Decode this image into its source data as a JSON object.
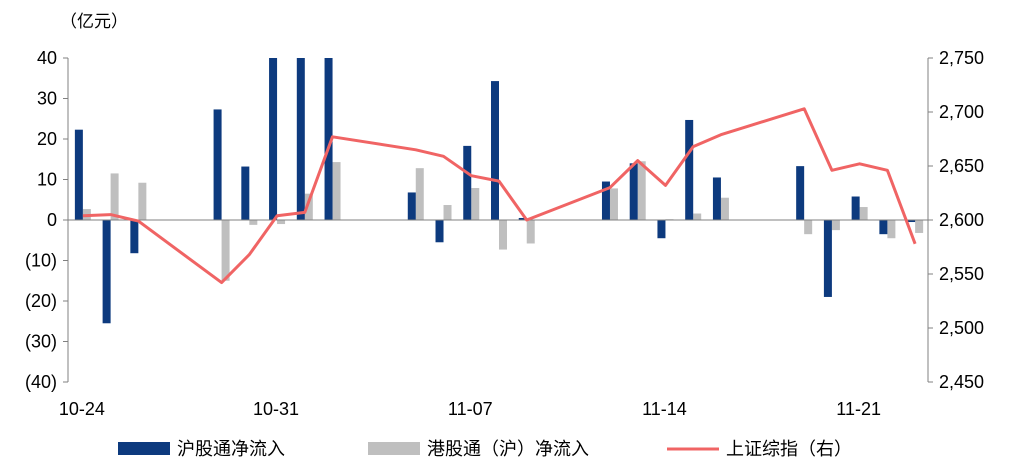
{
  "chart_data": {
    "type": "bar",
    "left_unit": "（亿元）",
    "ylim_left": [
      -40,
      40
    ],
    "yticks_left": [
      40,
      30,
      20,
      10,
      0,
      -10,
      -20,
      -30,
      -40
    ],
    "yticks_left_labels": [
      "40",
      "30",
      "20",
      "10",
      "0",
      "(10)",
      "(20)",
      "(30)",
      "(40)"
    ],
    "ylim_right": [
      2450,
      2750
    ],
    "yticks_right": [
      2750,
      2700,
      2650,
      2600,
      2550,
      2500,
      2450
    ],
    "yticks_right_labels": [
      "2,750",
      "2,700",
      "2,650",
      "2,600",
      "2,550",
      "2,500",
      "2,450"
    ],
    "x_tick_labels": [
      {
        "index": 0,
        "label": "10-24"
      },
      {
        "index": 7,
        "label": "10-31"
      },
      {
        "index": 14,
        "label": "11-07"
      },
      {
        "index": 21,
        "label": "11-14"
      },
      {
        "index": 28,
        "label": "11-21"
      }
    ],
    "n_slots": 31,
    "series": [
      {
        "name": "沪股通净流入",
        "kind": "bar",
        "color": "#0d3a7e",
        "points": [
          [
            0,
            22.3
          ],
          [
            1,
            -25.5
          ],
          [
            2,
            -8.2
          ],
          [
            5,
            27.3
          ],
          [
            6,
            13.2
          ],
          [
            7,
            40
          ],
          [
            8,
            40
          ],
          [
            9,
            40
          ],
          [
            12,
            6.8
          ],
          [
            13,
            -5.5
          ],
          [
            14,
            18.3
          ],
          [
            15,
            34.3
          ],
          [
            16,
            0.5
          ],
          [
            19,
            9.5
          ],
          [
            20,
            14.0
          ],
          [
            21,
            -4.5
          ],
          [
            22,
            24.7
          ],
          [
            23,
            10.5
          ],
          [
            26,
            13.3
          ],
          [
            27,
            -19.0
          ],
          [
            28,
            5.8
          ],
          [
            29,
            -3.5
          ],
          [
            30,
            -0.5
          ]
        ]
      },
      {
        "name": "港股通（沪）净流入",
        "kind": "bar",
        "color": "#bfbfbf",
        "points": [
          [
            0,
            2.7
          ],
          [
            1,
            11.5
          ],
          [
            2,
            9.2
          ],
          [
            5,
            -15.0
          ],
          [
            6,
            -1.2
          ],
          [
            7,
            -1.0
          ],
          [
            8,
            6.5
          ],
          [
            9,
            14.3
          ],
          [
            12,
            12.8
          ],
          [
            13,
            3.7
          ],
          [
            14,
            7.9
          ],
          [
            15,
            -7.3
          ],
          [
            16,
            -5.8
          ],
          [
            19,
            7.8
          ],
          [
            20,
            14.5
          ],
          [
            21,
            0.2
          ],
          [
            22,
            1.6
          ],
          [
            23,
            5.5
          ],
          [
            26,
            -3.5
          ],
          [
            27,
            -2.5
          ],
          [
            28,
            3.2
          ],
          [
            29,
            -4.5
          ],
          [
            30,
            -3.2
          ]
        ]
      },
      {
        "name": "上证综指（右）",
        "kind": "line",
        "axis": "right",
        "color": "#f06464",
        "points": [
          [
            0,
            2604
          ],
          [
            1,
            2605
          ],
          [
            2,
            2599
          ],
          [
            5,
            2542
          ],
          [
            6,
            2568
          ],
          [
            7,
            2604
          ],
          [
            8,
            2607
          ],
          [
            9,
            2677
          ],
          [
            12,
            2665
          ],
          [
            13,
            2659
          ],
          [
            14,
            2641
          ],
          [
            15,
            2636
          ],
          [
            16,
            2600
          ],
          [
            19,
            2630
          ],
          [
            20,
            2655
          ],
          [
            21,
            2632
          ],
          [
            22,
            2668
          ],
          [
            23,
            2679
          ],
          [
            26,
            2703
          ],
          [
            27,
            2646
          ],
          [
            28,
            2652
          ],
          [
            29,
            2646
          ],
          [
            30,
            2578
          ]
        ]
      }
    ],
    "legend_position": "bottom",
    "grid": false
  }
}
